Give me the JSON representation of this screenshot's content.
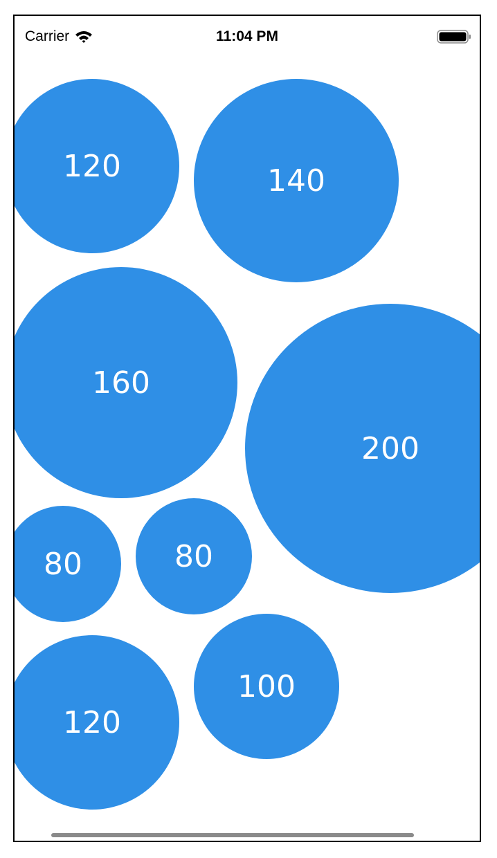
{
  "status_bar": {
    "carrier": "Carrier",
    "time": "11:04 PM",
    "icons": [
      "wifi-icon",
      "battery-icon"
    ]
  },
  "bubble_color": "#2F8FE6",
  "bubbles": [
    {
      "label": "120"
    },
    {
      "label": "140"
    },
    {
      "label": "160"
    },
    {
      "label": "200"
    },
    {
      "label": "80"
    },
    {
      "label": "80"
    },
    {
      "label": "120"
    },
    {
      "label": "100"
    }
  ]
}
